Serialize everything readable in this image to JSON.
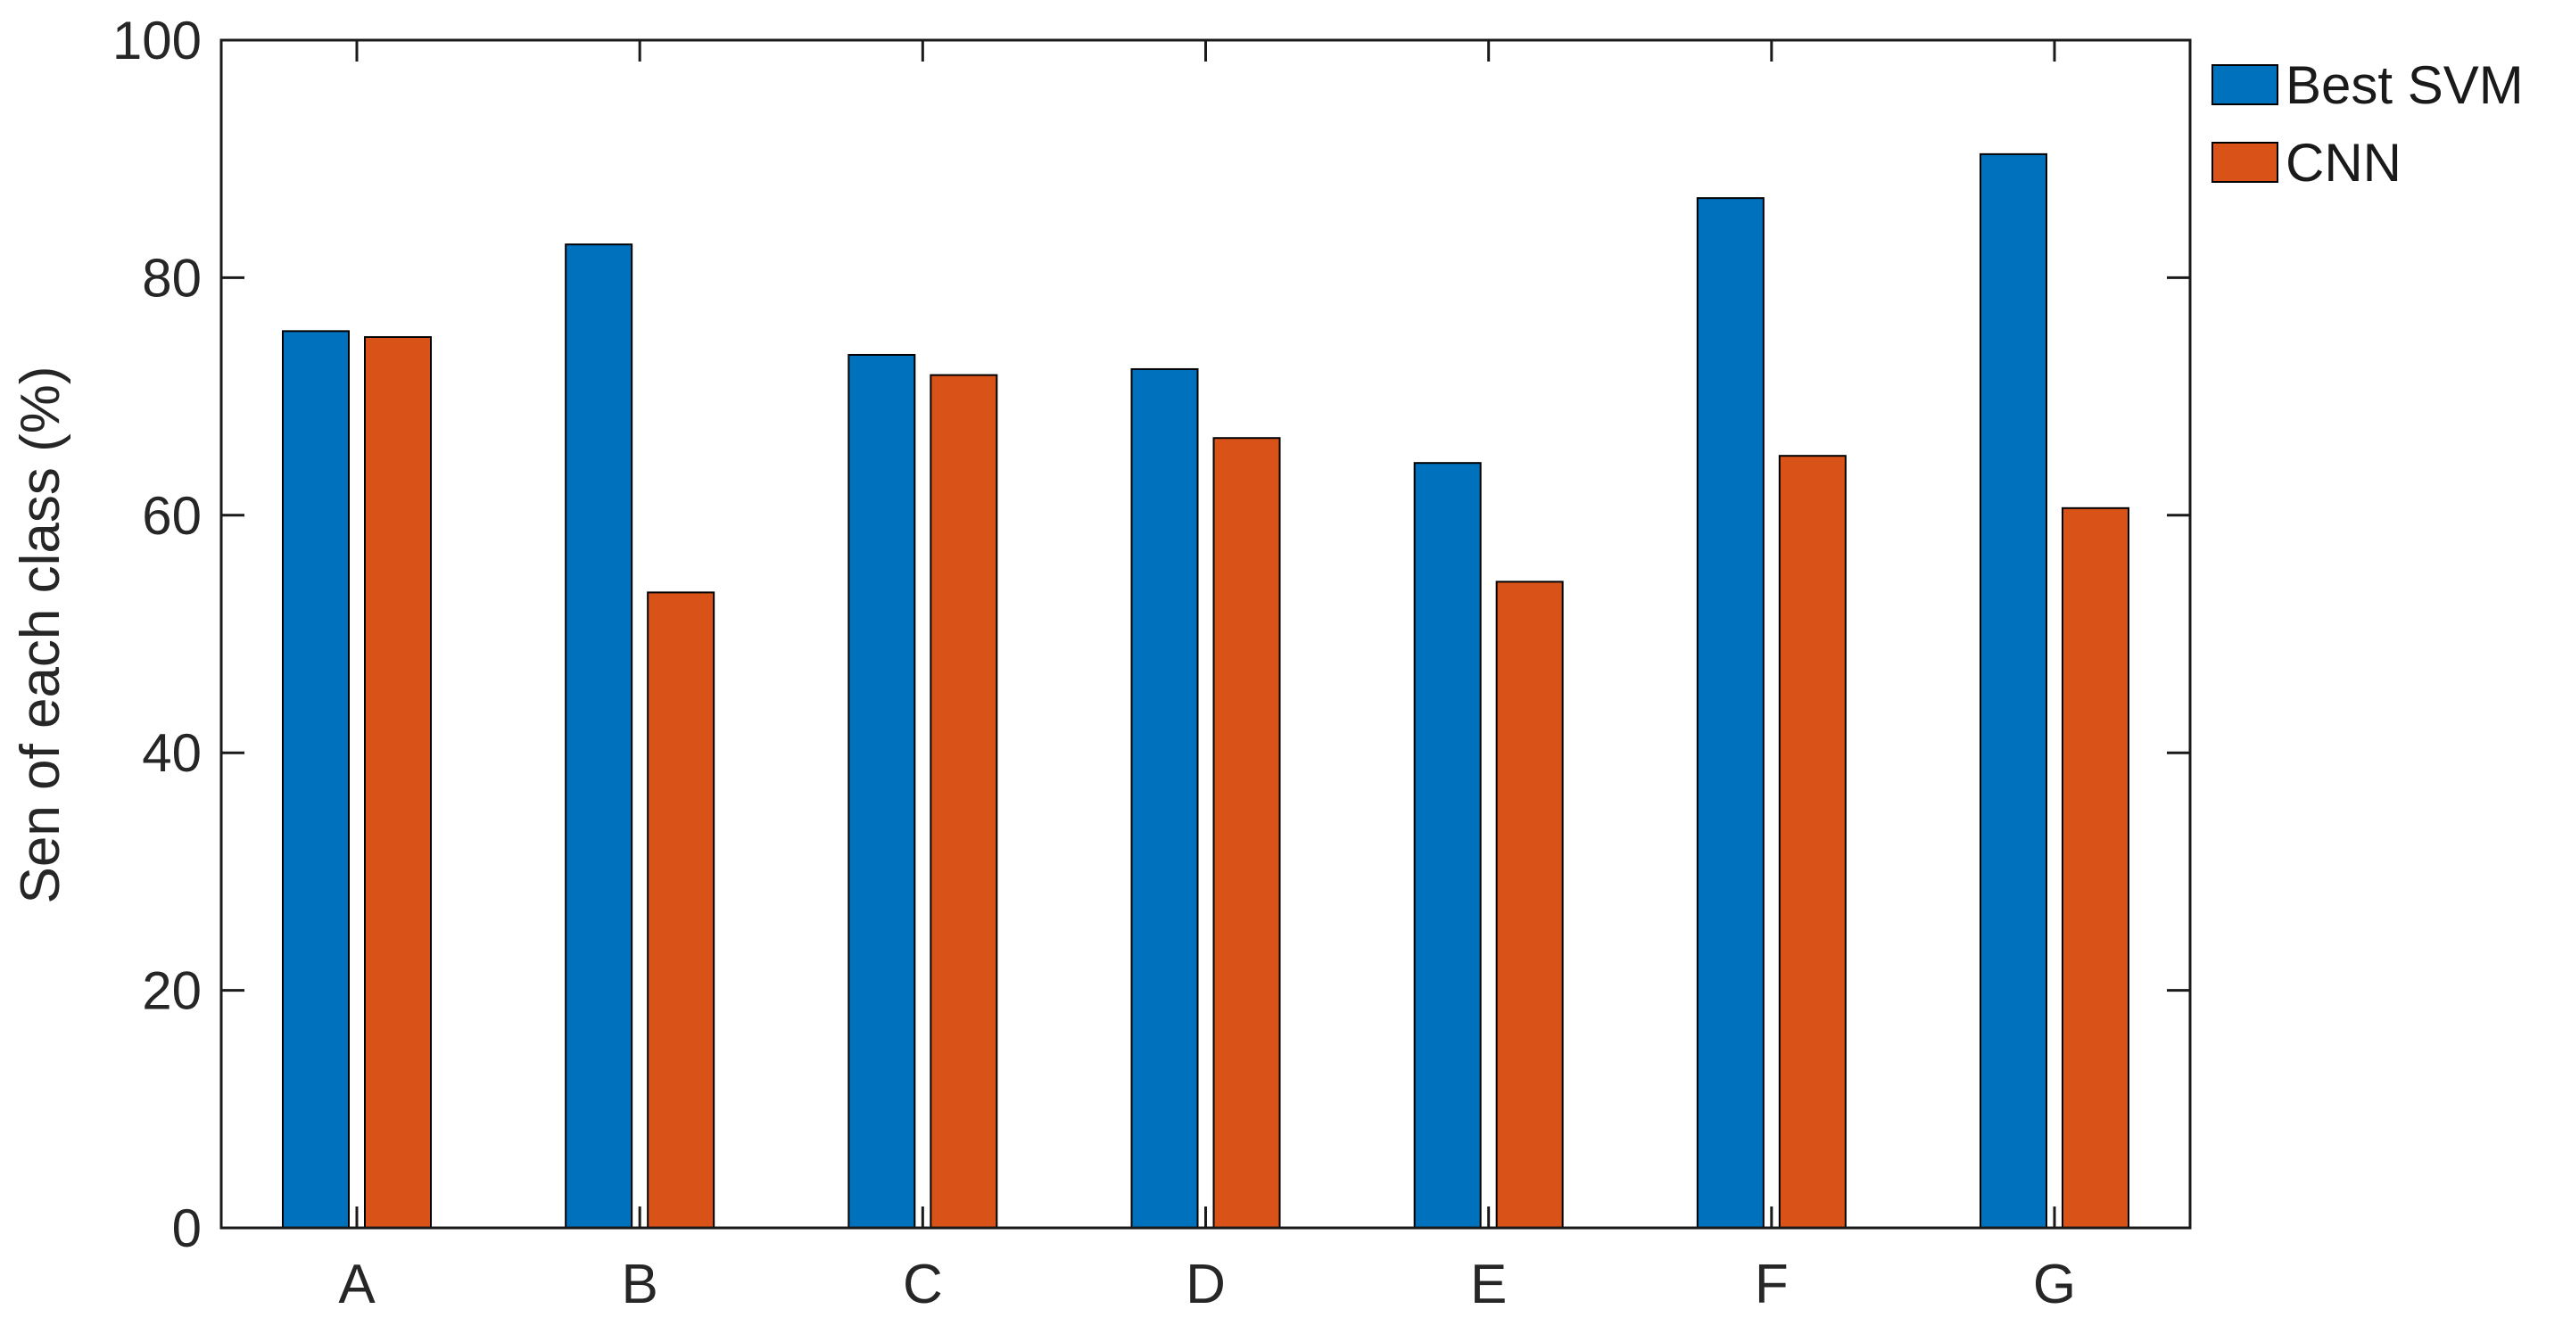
{
  "figure": {
    "background": "#ffffff"
  },
  "chart_data": {
    "type": "bar",
    "title": "",
    "xlabel": "",
    "ylabel": "Sen of each class (%)",
    "categories": [
      "A",
      "B",
      "C",
      "D",
      "E",
      "F",
      "G"
    ],
    "series": [
      {
        "name": "Best SVM",
        "color": "#0072BD",
        "values": [
          75.5,
          82.8,
          73.5,
          72.3,
          64.4,
          86.7,
          90.4
        ]
      },
      {
        "name": "CNN",
        "color": "#D95319",
        "values": [
          75.0,
          53.5,
          71.8,
          66.5,
          54.4,
          65.0,
          60.6
        ]
      }
    ],
    "ylim": [
      0,
      100
    ],
    "yticks": [
      0,
      20,
      40,
      60,
      80,
      100
    ],
    "grid": false,
    "legend_position": "top-right",
    "bar_edge_color": "#000000",
    "axis_color": "#262626",
    "tick_direction": "in",
    "box": true
  }
}
